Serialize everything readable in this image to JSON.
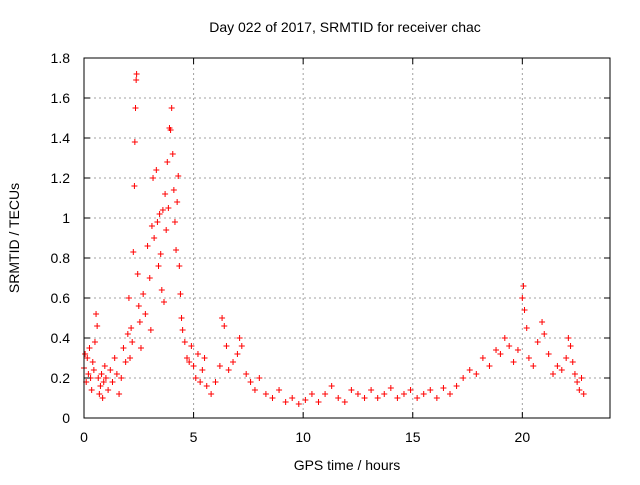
{
  "chart_data": {
    "type": "scatter",
    "title": "Day 022 of 2017, SRMTID for receiver chac",
    "xlabel": "GPS time / hours",
    "ylabel": "SRMTID / TECUs",
    "xlim": [
      0,
      24
    ],
    "ylim": [
      0,
      1.8
    ],
    "xticks": [
      0,
      5,
      10,
      15,
      20
    ],
    "xtick_labels": [
      "0",
      "5",
      "10",
      "15",
      "20"
    ],
    "yticks": [
      0,
      0.2,
      0.4,
      0.6,
      0.8,
      1.0,
      1.2,
      1.4,
      1.6,
      1.8
    ],
    "ytick_labels": [
      "0",
      "0.2",
      "0.4",
      "0.6",
      "0.8",
      "1",
      "1.2",
      "1.4",
      "1.6",
      "1.8"
    ],
    "grid": true,
    "marker": "+",
    "series": [
      {
        "name": "SRMTID",
        "color": "#ff0000",
        "points": [
          [
            0.0,
            0.25
          ],
          [
            0.05,
            0.32
          ],
          [
            0.1,
            0.18
          ],
          [
            0.15,
            0.3
          ],
          [
            0.2,
            0.22
          ],
          [
            0.25,
            0.35
          ],
          [
            0.3,
            0.2
          ],
          [
            0.35,
            0.14
          ],
          [
            0.4,
            0.28
          ],
          [
            0.45,
            0.24
          ],
          [
            0.5,
            0.38
          ],
          [
            0.55,
            0.52
          ],
          [
            0.6,
            0.46
          ],
          [
            0.65,
            0.2
          ],
          [
            0.7,
            0.12
          ],
          [
            0.75,
            0.16
          ],
          [
            0.8,
            0.22
          ],
          [
            0.85,
            0.1
          ],
          [
            0.9,
            0.18
          ],
          [
            0.95,
            0.26
          ],
          [
            1.0,
            0.2
          ],
          [
            1.1,
            0.14
          ],
          [
            1.2,
            0.24
          ],
          [
            1.3,
            0.18
          ],
          [
            1.4,
            0.3
          ],
          [
            1.5,
            0.22
          ],
          [
            1.6,
            0.12
          ],
          [
            1.7,
            0.2
          ],
          [
            1.8,
            0.35
          ],
          [
            1.9,
            0.28
          ],
          [
            2.0,
            0.42
          ],
          [
            2.05,
            0.6
          ],
          [
            2.1,
            0.3
          ],
          [
            2.15,
            0.45
          ],
          [
            2.2,
            0.38
          ],
          [
            2.25,
            0.83
          ],
          [
            2.3,
            1.16
          ],
          [
            2.32,
            1.38
          ],
          [
            2.35,
            1.55
          ],
          [
            2.38,
            1.69
          ],
          [
            2.4,
            1.72
          ],
          [
            2.45,
            0.72
          ],
          [
            2.5,
            0.56
          ],
          [
            2.55,
            0.48
          ],
          [
            2.6,
            0.35
          ],
          [
            2.7,
            0.62
          ],
          [
            2.8,
            0.52
          ],
          [
            2.9,
            0.86
          ],
          [
            3.0,
            0.7
          ],
          [
            3.05,
            0.44
          ],
          [
            3.1,
            0.96
          ],
          [
            3.15,
            1.2
          ],
          [
            3.2,
            0.9
          ],
          [
            3.3,
            1.24
          ],
          [
            3.35,
            0.98
          ],
          [
            3.4,
            0.76
          ],
          [
            3.45,
            1.02
          ],
          [
            3.5,
            0.82
          ],
          [
            3.55,
            0.64
          ],
          [
            3.6,
            1.04
          ],
          [
            3.65,
            0.58
          ],
          [
            3.7,
            1.12
          ],
          [
            3.75,
            0.94
          ],
          [
            3.8,
            1.28
          ],
          [
            3.85,
            1.05
          ],
          [
            3.9,
            1.45
          ],
          [
            3.95,
            1.44
          ],
          [
            4.0,
            1.55
          ],
          [
            4.05,
            1.32
          ],
          [
            4.1,
            1.14
          ],
          [
            4.15,
            0.98
          ],
          [
            4.2,
            0.84
          ],
          [
            4.25,
            1.08
          ],
          [
            4.3,
            1.21
          ],
          [
            4.35,
            0.76
          ],
          [
            4.4,
            0.62
          ],
          [
            4.45,
            0.5
          ],
          [
            4.5,
            0.44
          ],
          [
            4.6,
            0.38
          ],
          [
            4.7,
            0.3
          ],
          [
            4.8,
            0.28
          ],
          [
            4.9,
            0.36
          ],
          [
            5.0,
            0.26
          ],
          [
            5.1,
            0.2
          ],
          [
            5.2,
            0.32
          ],
          [
            5.3,
            0.18
          ],
          [
            5.4,
            0.24
          ],
          [
            5.5,
            0.3
          ],
          [
            5.6,
            0.16
          ],
          [
            5.8,
            0.12
          ],
          [
            6.0,
            0.18
          ],
          [
            6.2,
            0.26
          ],
          [
            6.3,
            0.5
          ],
          [
            6.4,
            0.46
          ],
          [
            6.5,
            0.36
          ],
          [
            6.6,
            0.24
          ],
          [
            6.8,
            0.28
          ],
          [
            7.0,
            0.32
          ],
          [
            7.1,
            0.4
          ],
          [
            7.2,
            0.36
          ],
          [
            7.4,
            0.22
          ],
          [
            7.6,
            0.18
          ],
          [
            7.8,
            0.14
          ],
          [
            8.0,
            0.2
          ],
          [
            8.3,
            0.12
          ],
          [
            8.6,
            0.1
          ],
          [
            8.9,
            0.14
          ],
          [
            9.2,
            0.08
          ],
          [
            9.5,
            0.1
          ],
          [
            9.8,
            0.07
          ],
          [
            10.1,
            0.09
          ],
          [
            10.4,
            0.12
          ],
          [
            10.7,
            0.08
          ],
          [
            11.0,
            0.12
          ],
          [
            11.3,
            0.16
          ],
          [
            11.6,
            0.1
          ],
          [
            11.9,
            0.08
          ],
          [
            12.2,
            0.14
          ],
          [
            12.5,
            0.12
          ],
          [
            12.8,
            0.1
          ],
          [
            13.1,
            0.14
          ],
          [
            13.4,
            0.1
          ],
          [
            13.7,
            0.12
          ],
          [
            14.0,
            0.15
          ],
          [
            14.3,
            0.1
          ],
          [
            14.6,
            0.12
          ],
          [
            14.9,
            0.14
          ],
          [
            15.2,
            0.1
          ],
          [
            15.5,
            0.12
          ],
          [
            15.8,
            0.14
          ],
          [
            16.1,
            0.1
          ],
          [
            16.4,
            0.15
          ],
          [
            16.7,
            0.12
          ],
          [
            17.0,
            0.16
          ],
          [
            17.3,
            0.2
          ],
          [
            17.6,
            0.24
          ],
          [
            17.9,
            0.22
          ],
          [
            18.2,
            0.3
          ],
          [
            18.5,
            0.26
          ],
          [
            18.8,
            0.34
          ],
          [
            19.0,
            0.32
          ],
          [
            19.2,
            0.4
          ],
          [
            19.4,
            0.36
          ],
          [
            19.6,
            0.28
          ],
          [
            19.8,
            0.34
          ],
          [
            20.0,
            0.6
          ],
          [
            20.05,
            0.66
          ],
          [
            20.1,
            0.54
          ],
          [
            20.2,
            0.45
          ],
          [
            20.3,
            0.3
          ],
          [
            20.5,
            0.26
          ],
          [
            20.7,
            0.38
          ],
          [
            20.9,
            0.48
          ],
          [
            21.0,
            0.42
          ],
          [
            21.2,
            0.32
          ],
          [
            21.4,
            0.22
          ],
          [
            21.6,
            0.26
          ],
          [
            21.8,
            0.24
          ],
          [
            22.0,
            0.3
          ],
          [
            22.1,
            0.4
          ],
          [
            22.2,
            0.36
          ],
          [
            22.3,
            0.28
          ],
          [
            22.4,
            0.22
          ],
          [
            22.5,
            0.18
          ],
          [
            22.6,
            0.14
          ],
          [
            22.7,
            0.2
          ],
          [
            22.8,
            0.12
          ]
        ]
      }
    ]
  }
}
